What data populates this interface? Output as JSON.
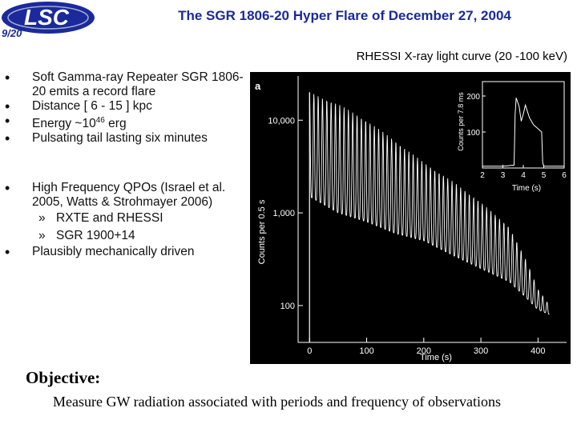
{
  "logo": {
    "text": "LSC",
    "slide_number": "9/20"
  },
  "title": "The SGR 1806-20 Hyper Flare of December 27, 2004",
  "caption": "RHESSI X-ray light curve (20 -100 keV)",
  "bullets_group1": [
    "Soft Gamma-ray Repeater SGR 1806-20 emits a record flare",
    "Distance [ 6 - 15 ] kpc",
    "Energy ~10",
    "Pulsating tail lasting six minutes"
  ],
  "energy_exponent": "46",
  "energy_unit": "erg",
  "bullets_group2": {
    "qpo": "High Frequency QPOs (Israel et al. 2005, Watts & Strohmayer 2006)",
    "sub1": "RXTE and RHESSI",
    "sub2": "SGR 1900+14",
    "mech": "Plausibly mechanically driven"
  },
  "sub_marker": "»",
  "objective": {
    "title": "Objective:",
    "text": "Measure GW radiation associated with periods and frequency of observations"
  },
  "chart_data": [
    {
      "type": "line",
      "panel_label": "a",
      "xlabel": "Time (s)",
      "ylabel": "Counts per 0.5 s",
      "x_ticks": [
        "0",
        "100",
        "200",
        "300",
        "400"
      ],
      "y_ticks": [
        "100",
        "1,000",
        "10,000"
      ],
      "y_scale": "log",
      "xlim": [
        -20,
        450
      ],
      "ylim": [
        40,
        30000
      ],
      "background": "#000000",
      "line_color": "#ffffff",
      "pulse_period_s": 7.56,
      "envelope_x": [
        0,
        50,
        100,
        150,
        200,
        250,
        300,
        350,
        380,
        400,
        420
      ],
      "envelope_peak": [
        20000,
        15000,
        10000,
        6000,
        3500,
        2200,
        1300,
        700,
        300,
        150,
        100
      ],
      "envelope_trough": [
        1500,
        1000,
        800,
        600,
        500,
        350,
        250,
        180,
        120,
        90,
        80
      ]
    },
    {
      "type": "line",
      "xlabel": "Time (s)",
      "ylabel": "Counts per 7.8 ms",
      "x_ticks": [
        "2",
        "3",
        "4",
        "5",
        "6"
      ],
      "y_ticks": [
        "100",
        "200"
      ],
      "xlim": [
        2,
        6
      ],
      "ylim": [
        0,
        240
      ],
      "x": [
        2.0,
        3.0,
        3.55,
        3.6,
        3.65,
        3.8,
        3.9,
        4.0,
        4.1,
        4.3,
        4.5,
        4.7,
        4.9,
        4.95,
        5.0,
        6.0
      ],
      "y": [
        5,
        5,
        8,
        150,
        195,
        170,
        130,
        150,
        175,
        140,
        120,
        110,
        100,
        15,
        5,
        5
      ]
    }
  ]
}
